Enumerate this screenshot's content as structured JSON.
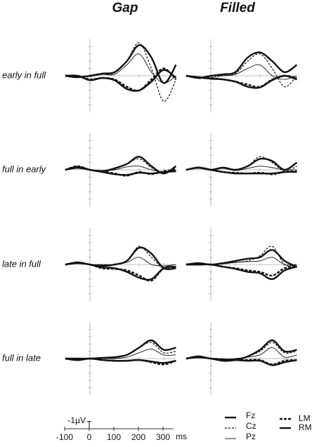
{
  "columns": [
    "Gap",
    "Filled"
  ],
  "rows": [
    "early in full",
    "full in early",
    "late in full",
    "full in late"
  ],
  "legend": [
    {
      "name": "Fz",
      "width": 2.4,
      "dash": "none"
    },
    {
      "name": "Cz",
      "width": 1.2,
      "dash": "3,2"
    },
    {
      "name": "Pz",
      "width": 0.9,
      "dash": "none"
    },
    {
      "name": "LM",
      "width": 2.4,
      "dash": "4,2"
    },
    {
      "name": "RM",
      "width": 2.4,
      "dash": "none"
    }
  ],
  "panel_axes": {
    "xlim": [
      -100,
      350
    ],
    "ylim": [
      -5,
      5
    ],
    "inverted": true,
    "xticks": [
      -100,
      0,
      100,
      200,
      300
    ],
    "yticks": [
      -4,
      -3,
      -2,
      -1,
      1,
      2,
      3,
      4
    ]
  },
  "x": [
    -100,
    -50,
    0,
    50,
    100,
    150,
    200,
    250,
    300,
    350
  ],
  "scale": {
    "xticks": [
      -100,
      0,
      100,
      200,
      300
    ],
    "xunit": "ms",
    "ylabel": "-1µV",
    "yvalue": -1
  },
  "chart_data": [
    {
      "type": "line",
      "series": [
        {
          "values": [
            0,
            0.2,
            0,
            -0.3,
            -0.5,
            -2,
            -4.2,
            -2.5,
            1,
            -1.5
          ]
        },
        {
          "values": [
            0,
            0.2,
            0.1,
            -0.2,
            -0.4,
            -2,
            -4.5,
            -1,
            3.5,
            0.5
          ]
        },
        {
          "values": [
            0,
            0.1,
            0,
            -0.2,
            -0.2,
            -1.5,
            -3,
            -0.5,
            1,
            0
          ]
        },
        {
          "values": [
            0,
            0,
            0.5,
            0.3,
            0.5,
            1.5,
            2,
            0.5,
            -1,
            0.5
          ]
        },
        {
          "values": [
            0,
            0,
            0.6,
            0.3,
            0.6,
            1.8,
            2,
            0.8,
            -0.8,
            0.3
          ]
        }
      ]
    },
    {
      "type": "line",
      "series": [
        {
          "values": [
            0,
            0.3,
            0,
            -0.2,
            -0.5,
            -2.5,
            -3.2,
            -2,
            -0.5,
            -1.5
          ]
        },
        {
          "values": [
            0,
            0.3,
            0.2,
            0,
            -0.3,
            -2,
            -3,
            -1,
            1.5,
            0
          ]
        },
        {
          "values": [
            0,
            0.2,
            0,
            0,
            -0.2,
            -1,
            -1.5,
            0,
            0.5,
            0
          ]
        },
        {
          "values": [
            0,
            0.3,
            0.3,
            0.5,
            0.8,
            1.2,
            1.5,
            0.5,
            0,
            0.3
          ]
        },
        {
          "values": [
            0,
            0.2,
            0.4,
            0.5,
            0.8,
            1.5,
            1.6,
            0.6,
            0,
            0.5
          ]
        }
      ]
    },
    {
      "type": "line",
      "series": [
        {
          "values": [
            0,
            -0.3,
            0,
            0.2,
            -0.2,
            -0.8,
            -1.8,
            -0.5,
            0.5,
            -0.5
          ]
        },
        {
          "values": [
            0,
            -0.2,
            0,
            0.1,
            -0.1,
            -0.8,
            -1.5,
            -0.3,
            0.5,
            -0.3
          ]
        },
        {
          "values": [
            0,
            -0.2,
            0,
            0.1,
            0,
            -0.4,
            -0.5,
            0,
            0.3,
            0
          ]
        },
        {
          "values": [
            0,
            -0.5,
            0,
            0.2,
            0.5,
            0.8,
            0.3,
            0.6,
            0.2,
            0
          ]
        },
        {
          "values": [
            0,
            -0.4,
            0,
            0.3,
            0.6,
            0.7,
            0.4,
            0.5,
            0.3,
            0.2
          ]
        }
      ]
    },
    {
      "type": "line",
      "series": [
        {
          "values": [
            0,
            -0.3,
            0,
            -0.3,
            0,
            -0.5,
            -1.5,
            -1.2,
            0,
            -1
          ]
        },
        {
          "values": [
            0,
            -0.2,
            0,
            -0.2,
            0,
            -0.5,
            -1.8,
            -1,
            0.2,
            -0.5
          ]
        },
        {
          "values": [
            0,
            -0.2,
            0,
            -0.2,
            0.1,
            -0.2,
            -0.5,
            -0.3,
            0,
            0
          ]
        },
        {
          "values": [
            0,
            -0.3,
            0,
            0.3,
            0.4,
            0.5,
            0.4,
            0.6,
            0.3,
            0.2
          ]
        },
        {
          "values": [
            0,
            -0.3,
            0,
            0.3,
            0.5,
            0.5,
            0.5,
            0.5,
            0.3,
            0.3
          ]
        }
      ]
    },
    {
      "type": "line",
      "series": [
        {
          "values": [
            0,
            -0.3,
            0,
            0.2,
            0,
            -0.5,
            -2.3,
            -1.5,
            0.5,
            0.5
          ]
        },
        {
          "values": [
            0,
            -0.2,
            0,
            0.1,
            0,
            -0.5,
            -2.5,
            -1,
            0.5,
            0.3
          ]
        },
        {
          "values": [
            0,
            -0.2,
            0,
            0,
            0,
            -0.3,
            -1,
            0,
            0.2,
            0
          ]
        },
        {
          "values": [
            0,
            -0.2,
            0,
            0.5,
            0.6,
            0.8,
            1.5,
            2.2,
            0.5,
            0.3
          ]
        },
        {
          "values": [
            0,
            -0.2,
            0,
            0.4,
            0.5,
            1,
            1.8,
            2,
            0.5,
            0.3
          ]
        }
      ]
    },
    {
      "type": "line",
      "series": [
        {
          "values": [
            0,
            -0.2,
            0,
            -0.2,
            -0.5,
            -0.8,
            -1,
            -2,
            -0.5,
            0.3
          ]
        },
        {
          "values": [
            0,
            -0.2,
            0,
            -0.1,
            -0.3,
            -0.5,
            -1.2,
            -2.5,
            0,
            0
          ]
        },
        {
          "values": [
            0,
            -0.1,
            0,
            -0.1,
            -0.3,
            -0.4,
            -0.5,
            -1,
            0,
            0
          ]
        },
        {
          "values": [
            0,
            0,
            0,
            0.3,
            0.5,
            0.8,
            1,
            1.5,
            0.5,
            0.2
          ]
        },
        {
          "values": [
            0,
            0,
            0,
            0.3,
            0.6,
            1,
            1.2,
            2,
            0.8,
            0.3
          ]
        }
      ]
    },
    {
      "type": "line",
      "series": [
        {
          "values": [
            0,
            0,
            0,
            -0.1,
            -0.2,
            -0.5,
            -1.5,
            -2.5,
            -1.2,
            -1.5
          ]
        },
        {
          "values": [
            0,
            0,
            0,
            -0.1,
            -0.1,
            -0.5,
            -1.5,
            -2.2,
            -0.8,
            -1
          ]
        },
        {
          "values": [
            0,
            0,
            0,
            0,
            0,
            -0.2,
            -0.8,
            -1.3,
            -0.5,
            -0.5
          ]
        },
        {
          "values": [
            0,
            0.2,
            0,
            0.2,
            0.3,
            0.3,
            0.2,
            0.5,
            0.8,
            0.3
          ]
        },
        {
          "values": [
            0,
            0.2,
            0,
            0.2,
            0.3,
            0.3,
            0.2,
            0.4,
            0.6,
            0.3
          ]
        }
      ]
    },
    {
      "type": "line",
      "series": [
        {
          "values": [
            0,
            -0.2,
            0,
            0.3,
            0.2,
            -0.3,
            -1.2,
            -2.5,
            -1,
            -1.2
          ]
        },
        {
          "values": [
            0,
            -0.2,
            0,
            0.2,
            0.1,
            -0.3,
            -1,
            -2.2,
            -0.8,
            -1
          ]
        },
        {
          "values": [
            0,
            -0.1,
            0,
            0.1,
            0,
            -0.2,
            -0.5,
            -1.5,
            -0.2,
            -0.5
          ]
        },
        {
          "values": [
            0,
            -0.2,
            0,
            0.1,
            0.2,
            0.2,
            0.2,
            0.8,
            0.3,
            0.2
          ]
        },
        {
          "values": [
            0,
            -0.3,
            0,
            0.1,
            0.2,
            0.3,
            0.3,
            0.9,
            0.5,
            0.2
          ]
        }
      ]
    }
  ]
}
